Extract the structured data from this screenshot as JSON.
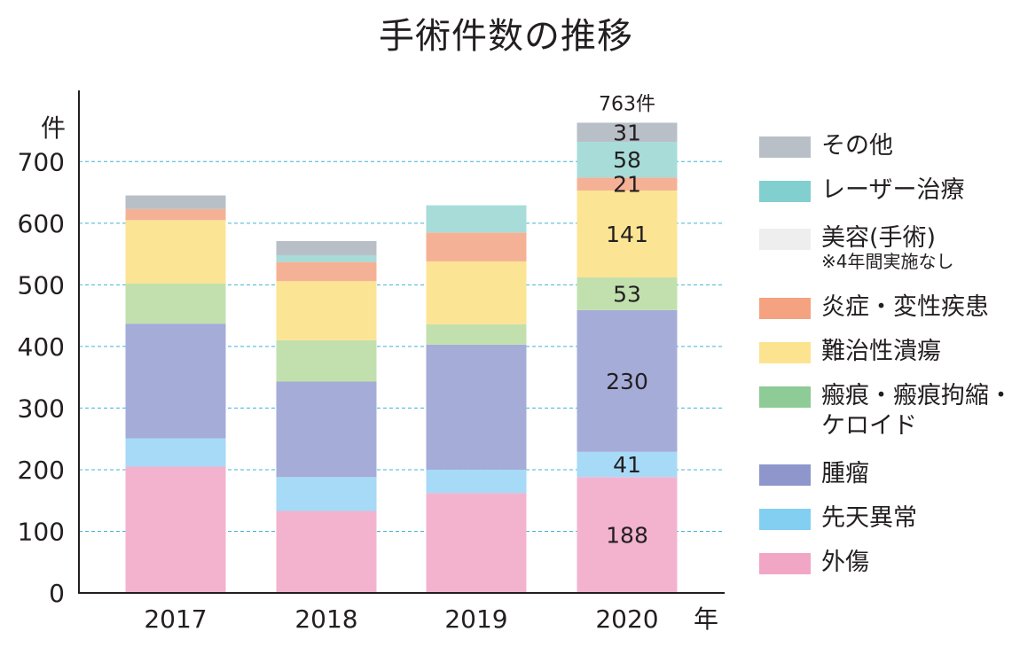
{
  "chart_data": {
    "type": "bar",
    "stacked": true,
    "title": "手術件数の推移",
    "ylabel": "件",
    "xlabel": "年",
    "ylim": [
      0,
      820
    ],
    "yticks": [
      0,
      100,
      200,
      300,
      400,
      500,
      600,
      700
    ],
    "grid": "horizontal dashed",
    "legend_position": "right",
    "categories": [
      "2017",
      "2018",
      "2019",
      "2020"
    ],
    "series": [
      {
        "name": "外傷",
        "color": "#f3b3cf",
        "values": [
          205,
          133,
          162,
          188
        ]
      },
      {
        "name": "先天異常",
        "color": "#a6daf6",
        "values": [
          46,
          55,
          38,
          41
        ]
      },
      {
        "name": "腫瘤",
        "color": "#a5acd8",
        "values": [
          186,
          155,
          203,
          230
        ]
      },
      {
        "name": "瘢痕・瘢痕拘縮・ケロイド",
        "color": "#c2e0ad",
        "values": [
          65,
          67,
          33,
          53
        ]
      },
      {
        "name": "難治性潰瘍",
        "color": "#fce495",
        "values": [
          103,
          96,
          102,
          141
        ]
      },
      {
        "name": "炎症・変性疾患",
        "color": "#f5b195",
        "values": [
          18,
          31,
          47,
          21
        ]
      },
      {
        "name": "美容(手術)",
        "note": "※4年間実施なし",
        "color": "#eeeeee",
        "values": [
          0,
          0,
          0,
          0
        ]
      },
      {
        "name": "レーザー治療",
        "color": "#a7dcd9",
        "values": [
          0,
          11,
          44,
          58
        ]
      },
      {
        "name": "その他",
        "color": "#b8bfc7",
        "values": [
          22,
          23,
          0,
          31
        ]
      }
    ],
    "data_labels": {
      "2020": {
        "外傷": "188",
        "先天異常": "41",
        "腫瘤": "230",
        "瘢痕・瘢痕拘縮・ケロイド": "53",
        "難治性潰瘍": "141",
        "炎症・変性疾患": "21",
        "レーザー治療": "58",
        "その他": "31"
      }
    },
    "total_labels": {
      "2020": "763件"
    }
  },
  "legend": [
    {
      "label": "その他",
      "color": "#b8bfc7"
    },
    {
      "label": "レーザー治療",
      "color": "#82cfd0"
    },
    {
      "label": "美容(手術)",
      "note": "※4年間実施なし",
      "color": "#eeeeee"
    },
    {
      "label": "炎症・変性疾患",
      "color": "#f4a27f"
    },
    {
      "label": "難治性潰瘍",
      "color": "#fbe38f"
    },
    {
      "label": "瘢痕・瘢痕拘縮・",
      "label2": "ケロイド",
      "color": "#8ecb96"
    },
    {
      "label": "腫瘤",
      "color": "#8e96cb"
    },
    {
      "label": "先天異常",
      "color": "#83cff2"
    },
    {
      "label": "外傷",
      "color": "#f2a6c6"
    }
  ]
}
